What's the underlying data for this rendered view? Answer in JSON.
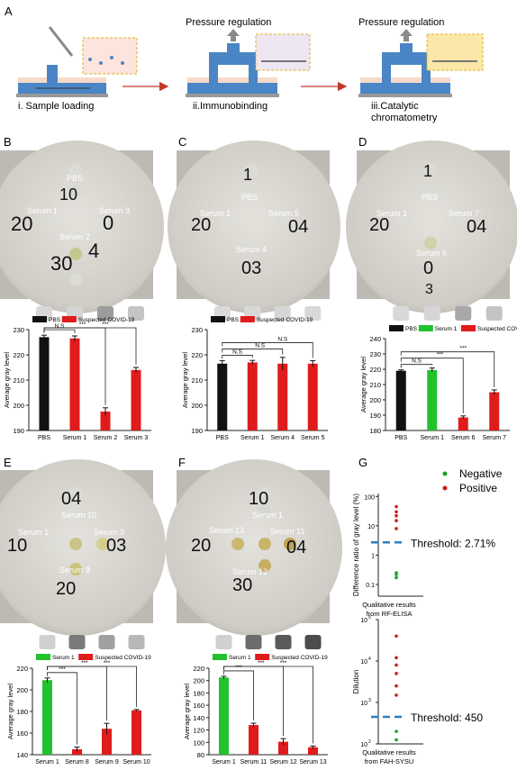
{
  "panel_letters": {
    "A": "A",
    "B": "B",
    "C": "C",
    "D": "D",
    "E": "E",
    "F": "F",
    "G": "G"
  },
  "schematic": {
    "step1": "i. Sample loading",
    "step2": "ii.Immunobinding",
    "step3_line1": "iii.Catalytic",
    "step3_line2": "chromatometry",
    "pressure2": "Pressure regulation",
    "pressure3": "Pressure regulation"
  },
  "photos": {
    "B": {
      "labels": [
        "PBS",
        "Serum 1",
        "Serum 3",
        "Serum 2"
      ],
      "marks": [
        "10",
        "20",
        "0",
        "30",
        "4"
      ]
    },
    "C": {
      "labels": [
        "PBS",
        "Serum 1",
        "Serum 5",
        "Serum 4"
      ],
      "marks": [
        "1",
        "20",
        "04",
        "03"
      ]
    },
    "D": {
      "labels": [
        "PBS",
        "Serum 1",
        "Serum 7",
        "Serum 6"
      ],
      "marks": [
        "1",
        "20",
        "04",
        "0",
        "3"
      ]
    },
    "E": {
      "labels": [
        "Serum 10",
        "Serum 1",
        "Serum 9",
        "Serum 8"
      ],
      "marks": [
        "04",
        "10",
        "03",
        "20"
      ]
    },
    "F": {
      "labels": [
        "Serum 13",
        "Serum 1",
        "Serum 11",
        "Serum 12"
      ],
      "marks": [
        "10",
        "20",
        "04",
        "30"
      ]
    }
  },
  "colors": {
    "black": "#111111",
    "red": "#e01b1b",
    "green": "#22c22e",
    "dash": "#2a7fc0",
    "neg": "#1aa31a",
    "pos": "#cc1a1a"
  },
  "chart_data": [
    {
      "panel": "B",
      "type": "bar",
      "ylabel": "Average gray level",
      "ylim": [
        190,
        230
      ],
      "yticks": [
        190,
        200,
        210,
        220,
        230
      ],
      "categories": [
        "PBS",
        "Serum 1",
        "Serum 2",
        "Serum 3"
      ],
      "values": [
        227,
        226.5,
        197.5,
        214
      ],
      "errors": [
        0.8,
        1,
        1.5,
        1
      ],
      "bar_colors": [
        "black",
        "red",
        "red",
        "red"
      ],
      "legend": [
        {
          "name": "PBS",
          "color": "black"
        },
        {
          "name": "Suspected COVID-19",
          "color": "red"
        }
      ],
      "significance": [
        "N.S",
        "***",
        "***"
      ],
      "well_gray": [
        "#d8d8d8",
        "#d4d4d4",
        "#9c9c9c",
        "#c4c4c4"
      ]
    },
    {
      "panel": "C",
      "type": "bar",
      "ylabel": "Average gray level",
      "ylim": [
        190,
        230
      ],
      "yticks": [
        190,
        200,
        210,
        220,
        230
      ],
      "categories": [
        "PBS",
        "Serum 1",
        "Serum 4",
        "Serum 5"
      ],
      "values": [
        216.5,
        217,
        216.5,
        216.5
      ],
      "errors": [
        1.2,
        0.8,
        2.5,
        1.2
      ],
      "bar_colors": [
        "black",
        "red",
        "red",
        "red"
      ],
      "legend": [
        {
          "name": "PBS",
          "color": "black"
        },
        {
          "name": "Suspected COVID-19",
          "color": "red"
        }
      ],
      "significance": [
        "N.S",
        "N.S",
        "N.S"
      ],
      "well_gray": [
        "#dadada",
        "#d8d8d8",
        "#d6d6d6",
        "#d8d8d8"
      ]
    },
    {
      "panel": "D",
      "type": "bar",
      "ylabel": "Average gray level",
      "ylim": [
        180,
        240
      ],
      "yticks": [
        180,
        190,
        200,
        210,
        220,
        230,
        240
      ],
      "categories": [
        "PBS",
        "Serum 1",
        "Serum 6",
        "Serum 7"
      ],
      "values": [
        219,
        219.5,
        188.5,
        205
      ],
      "errors": [
        0.6,
        1.3,
        1,
        1.5
      ],
      "bar_colors": [
        "black",
        "green",
        "red",
        "red"
      ],
      "legend": [
        {
          "name": "PBS",
          "color": "black"
        },
        {
          "name": "Serum 1",
          "color": "green"
        },
        {
          "name": "Suspected COVID-19",
          "color": "red"
        }
      ],
      "significance": [
        "N.S",
        "***",
        "***"
      ],
      "well_gray": [
        "#d8d8d8",
        "#d6d6d6",
        "#a8a8a8",
        "#c4c4c4"
      ]
    },
    {
      "panel": "E",
      "type": "bar",
      "ylabel": "Average gray level",
      "ylim": [
        140,
        220
      ],
      "yticks": [
        140,
        160,
        180,
        200,
        220
      ],
      "categories": [
        "Serum 1",
        "Serum 8",
        "Serum 9",
        "Serum 10"
      ],
      "values": [
        209,
        145,
        164,
        181
      ],
      "errors": [
        2,
        2,
        5,
        0.8
      ],
      "bar_colors": [
        "green",
        "red",
        "red",
        "red"
      ],
      "legend": [
        {
          "name": "Serum 1",
          "color": "green"
        },
        {
          "name": "Suspected COVID-19",
          "color": "red"
        }
      ],
      "significance": [
        "***",
        "***",
        "***"
      ],
      "well_gray": [
        "#d0d0d0",
        "#7a7a7a",
        "#a0a0a0",
        "#b8b8b8"
      ]
    },
    {
      "panel": "F",
      "type": "bar",
      "ylabel": "Average gray level",
      "ylim": [
        80,
        220
      ],
      "yticks": [
        80,
        100,
        120,
        140,
        160,
        180,
        200,
        220
      ],
      "categories": [
        "Serum 1",
        "Serum 11",
        "Serum 12",
        "Serum 13"
      ],
      "values": [
        205,
        128,
        101,
        92
      ],
      "errors": [
        2,
        3,
        5,
        2
      ],
      "bar_colors": [
        "green",
        "red",
        "red",
        "red"
      ],
      "legend": [
        {
          "name": "Serum 1",
          "color": "green"
        },
        {
          "name": "Suspected COVID-19",
          "color": "red"
        }
      ],
      "significance": [
        "***",
        "***",
        "***"
      ],
      "well_gray": [
        "#d0d0d0",
        "#6c6c6c",
        "#5a5a5a",
        "#4c4c4c"
      ]
    },
    {
      "panel": "G-top",
      "type": "scatter",
      "scale": "log",
      "ylabel": "Difference ratio of gray level (%)",
      "xlabel_line1": "Qualitative results",
      "xlabel_line2": "from RF-ELISA",
      "yticks": [
        "0.1",
        "1",
        "10",
        "100"
      ],
      "threshold_label": "Threshold: 2.71%",
      "threshold": 2.71,
      "negative": [
        0.22,
        0.25,
        0.17
      ],
      "positive": [
        8,
        15,
        22,
        30,
        45
      ]
    },
    {
      "panel": "G-bottom",
      "type": "scatter",
      "scale": "log",
      "ylabel": "Dilution",
      "xlabel_line1": "Qualitative results",
      "xlabel_line2": "from FAH-SYSU",
      "ytick_exponents": [
        "5",
        "4",
        "3",
        "2"
      ],
      "tick_base": "10",
      "threshold_label": "Threshold: 450",
      "threshold": 450,
      "negative": [
        125,
        200
      ],
      "positive": [
        1500,
        2500,
        5000,
        8000,
        12000,
        40000
      ]
    }
  ],
  "legend_g": {
    "negative": "Negative",
    "positive": "Positive"
  }
}
